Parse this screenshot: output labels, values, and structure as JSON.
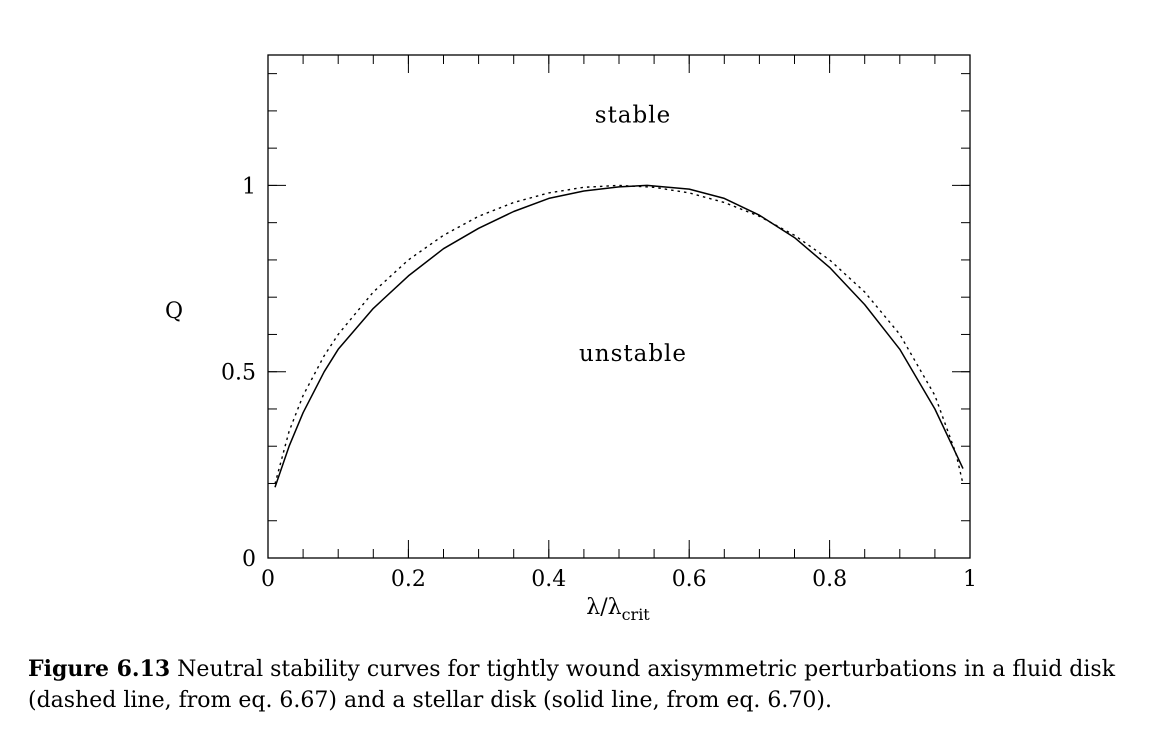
{
  "chart_data": {
    "type": "line",
    "title": "",
    "xlabel": "λ/λ",
    "xlabel_sub": "crit",
    "ylabel": "Q",
    "xlim": [
      0,
      1
    ],
    "ylim": [
      0,
      1.35
    ],
    "grid": false,
    "x_ticks": [
      {
        "value": 0,
        "label": "0"
      },
      {
        "value": 0.2,
        "label": "0.2"
      },
      {
        "value": 0.4,
        "label": "0.4"
      },
      {
        "value": 0.6,
        "label": "0.6"
      },
      {
        "value": 0.8,
        "label": "0.8"
      },
      {
        "value": 1,
        "label": "1"
      }
    ],
    "y_ticks": [
      {
        "value": 0,
        "label": "0"
      },
      {
        "value": 0.5,
        "label": "0.5"
      },
      {
        "value": 1,
        "label": "1"
      }
    ],
    "x_minor_step": 0.05,
    "y_minor_step": 0.1,
    "annotations": [
      {
        "text": "stable",
        "x": 0.5,
        "y": 1.19
      },
      {
        "text": "unstable",
        "x": 0.5,
        "y": 0.55
      }
    ],
    "series": [
      {
        "style": "dashed",
        "x": [
          0.01,
          0.03,
          0.05,
          0.08,
          0.1,
          0.15,
          0.2,
          0.25,
          0.3,
          0.35,
          0.4,
          0.45,
          0.5,
          0.55,
          0.6,
          0.65,
          0.7,
          0.75,
          0.8,
          0.85,
          0.9,
          0.95,
          0.98,
          0.99
        ],
        "y": [
          0.199,
          0.34,
          0.436,
          0.543,
          0.6,
          0.714,
          0.8,
          0.866,
          0.917,
          0.954,
          0.98,
          0.995,
          1.0,
          0.995,
          0.98,
          0.954,
          0.917,
          0.866,
          0.8,
          0.714,
          0.6,
          0.436,
          0.28,
          0.199
        ]
      },
      {
        "style": "solid",
        "x": [
          0.01,
          0.03,
          0.05,
          0.08,
          0.1,
          0.15,
          0.2,
          0.25,
          0.3,
          0.35,
          0.4,
          0.45,
          0.5,
          0.54,
          0.6,
          0.65,
          0.7,
          0.75,
          0.8,
          0.85,
          0.9,
          0.95,
          0.98,
          0.99
        ],
        "y": [
          0.19,
          0.3,
          0.39,
          0.5,
          0.56,
          0.67,
          0.757,
          0.83,
          0.885,
          0.93,
          0.965,
          0.985,
          0.996,
          1.0,
          0.99,
          0.965,
          0.92,
          0.86,
          0.78,
          0.68,
          0.56,
          0.4,
          0.28,
          0.24
        ]
      }
    ]
  },
  "caption": {
    "label": "Figure 6.13",
    "text": " Neutral stability curves for tightly wound axisymmetric perturbations in a fluid disk (dashed line, from eq. 6.67) and a stellar disk (solid line, from eq. 6.70)."
  }
}
